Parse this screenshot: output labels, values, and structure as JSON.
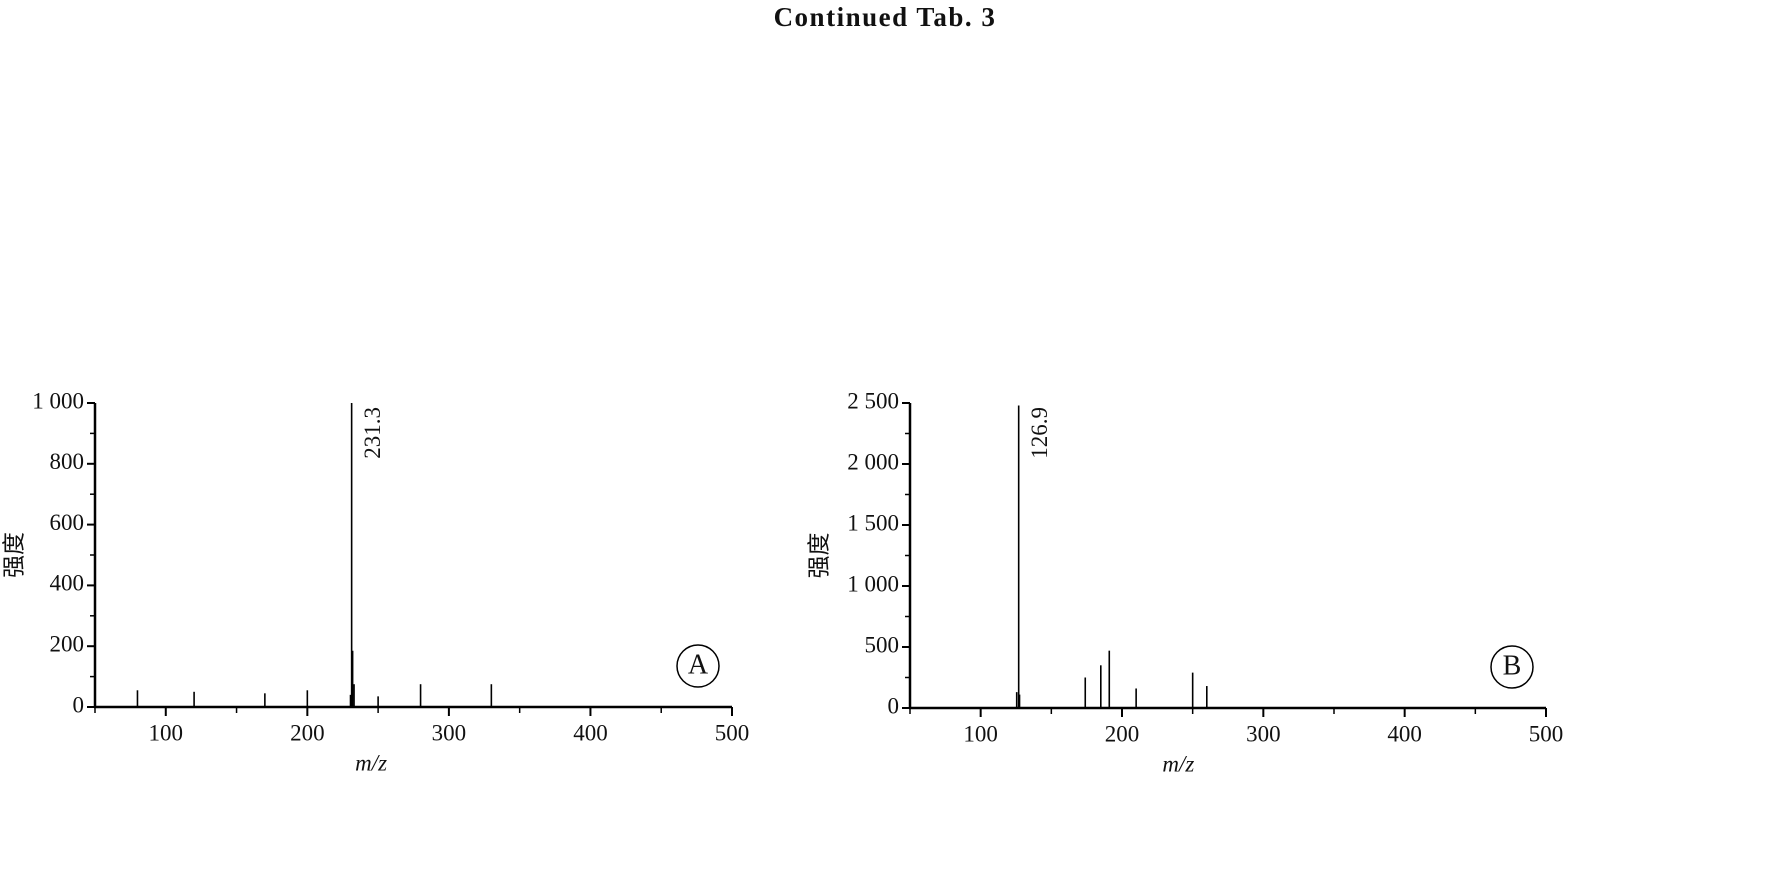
{
  "title": "Continued Tab. 3",
  "chart_data": [
    {
      "type": "bar",
      "panel_label": "A",
      "xlabel": "m/z",
      "ylabel": "强度",
      "x": [
        80,
        120,
        170,
        200,
        230.5,
        231.3,
        232,
        233,
        250,
        280,
        330
      ],
      "values": [
        55,
        50,
        45,
        55,
        40,
        1000,
        185,
        75,
        35,
        75,
        75
      ],
      "color": "#000000",
      "annotations": [
        {
          "text": "231.3",
          "x": 231.3
        }
      ],
      "xlim": [
        50,
        500
      ],
      "xticks": [
        100,
        200,
        300,
        400,
        500
      ],
      "xminorticks": [
        50,
        150,
        250,
        350,
        450
      ],
      "ylim": [
        0,
        1000
      ],
      "yticks": [
        0,
        200,
        400,
        600,
        800,
        {
          "value": 1000,
          "label": "1 000"
        }
      ],
      "yminorticks": [
        100,
        300,
        500,
        700,
        900
      ]
    },
    {
      "type": "bar",
      "panel_label": "B",
      "xlabel": "m/z",
      "ylabel": "强度",
      "x": [
        125.5,
        126.9,
        127.5,
        174,
        185,
        191,
        210,
        250,
        260
      ],
      "values": [
        130,
        2480,
        110,
        250,
        350,
        470,
        160,
        290,
        180
      ],
      "color": "#000000",
      "annotations": [
        {
          "text": "126.9",
          "x": 126.9
        }
      ],
      "xlim": [
        50,
        500
      ],
      "xticks": [
        100,
        200,
        300,
        400,
        500
      ],
      "xminorticks": [
        50,
        150,
        250,
        350,
        450
      ],
      "ylim": [
        0,
        2500
      ],
      "yticks": [
        0,
        500,
        {
          "value": 1000,
          "label": "1 000"
        },
        {
          "value": 1500,
          "label": "1 500"
        },
        {
          "value": 2000,
          "label": "2 000"
        },
        {
          "value": 2500,
          "label": "2 500"
        }
      ],
      "yminorticks": [
        250,
        750,
        1250,
        1750,
        2250
      ]
    }
  ]
}
